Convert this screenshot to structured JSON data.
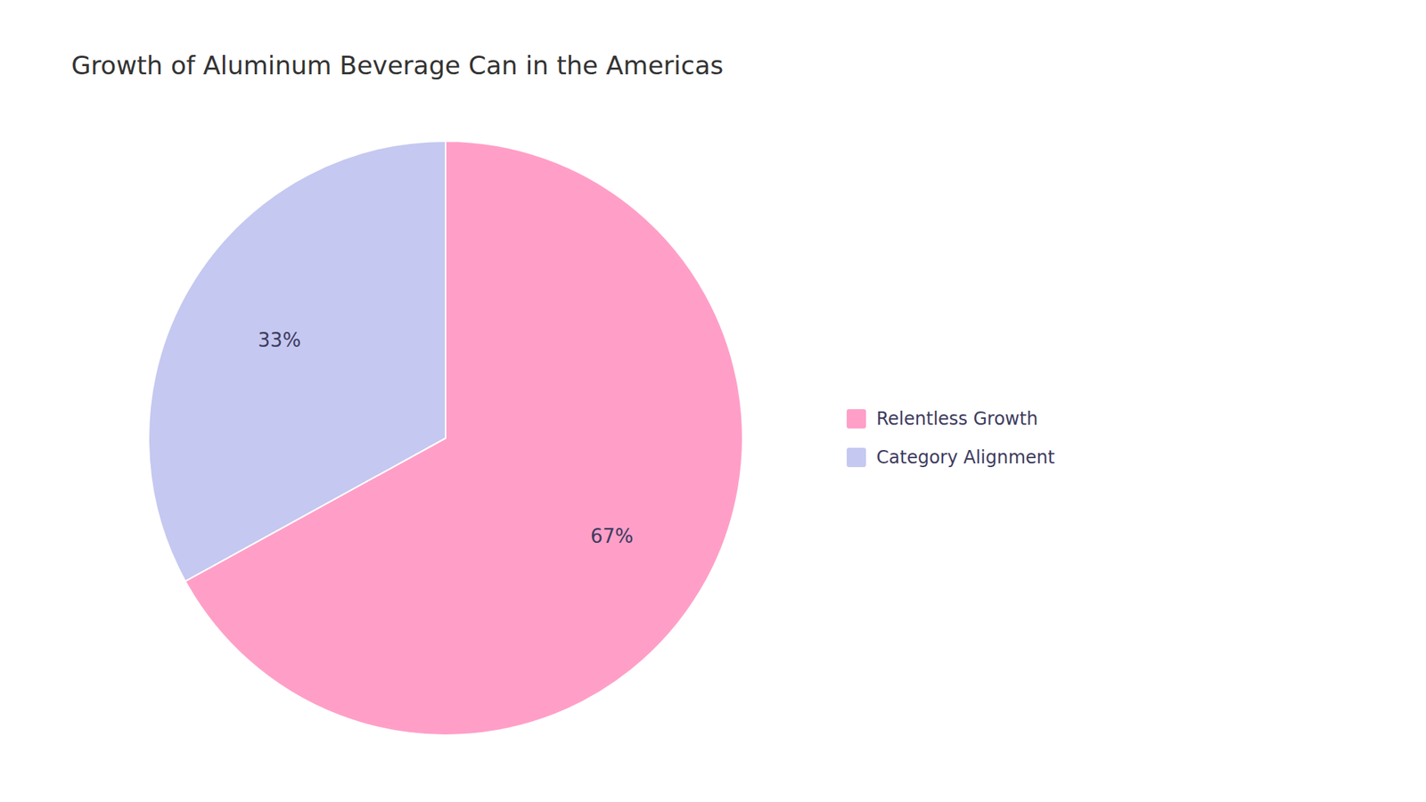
{
  "chart_data": {
    "type": "pie",
    "title": "Growth of Aluminum Beverage Can in the Americas",
    "categories": [
      "Relentless Growth",
      "Category Alignment"
    ],
    "values": [
      67,
      33
    ],
    "value_labels": [
      "67%",
      "33%"
    ],
    "colors": [
      "#FF9FC8",
      "#C5C8F0"
    ],
    "data_labels": true,
    "legend": "right"
  }
}
